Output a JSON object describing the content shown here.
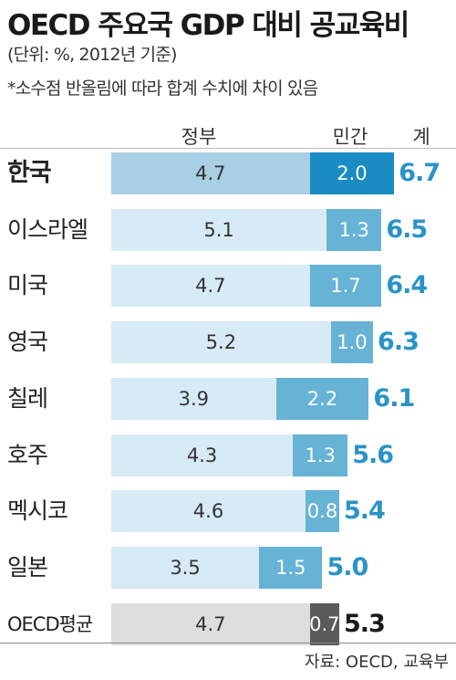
{
  "header": {
    "title": "OECD 주요국 GDP 대비 공교육비",
    "unit_note": "(단위: %, 2012년 기준)",
    "rounding_note": "*소수점 반올림에 따라 합계 수치에 차이 있음"
  },
  "columns": {
    "gov": "정부",
    "private": "민간",
    "total": "계"
  },
  "source": "자료: OECD, 교육부",
  "colors": {
    "gov_bar": "#d7ebf6",
    "gov_bar_korea": "#a9cfe4",
    "gov_bar_oecd": "#dddddd",
    "private_bar": "#66b3d6",
    "private_bar_korea": "#1a8cc4",
    "private_bar_oecd": "#5a5a5a",
    "total_text": "#2a93c7",
    "total_text_oecd": "#1a1a1a"
  },
  "chart_data": {
    "type": "bar",
    "stacked": true,
    "orientation": "horizontal",
    "categories": [
      "한국",
      "이스라엘",
      "미국",
      "영국",
      "칠레",
      "호주",
      "멕시코",
      "일본",
      "OECD평균"
    ],
    "series": [
      {
        "name": "정부",
        "values": [
          4.7,
          5.1,
          4.7,
          5.2,
          3.9,
          4.3,
          4.6,
          3.5,
          4.7
        ]
      },
      {
        "name": "민간",
        "values": [
          2.0,
          1.3,
          1.7,
          1.0,
          2.2,
          1.3,
          0.8,
          1.5,
          0.7
        ]
      }
    ],
    "totals": {
      "name": "계",
      "values": [
        6.7,
        6.5,
        6.4,
        6.3,
        6.1,
        5.6,
        5.4,
        5.0,
        5.3
      ]
    },
    "gov_labels": [
      "4.7",
      "5.1",
      "4.7",
      "5.2",
      "3.9",
      "4.3",
      "4.6",
      "3.5",
      "4.7"
    ],
    "private_labels": [
      "2.0",
      "1.3",
      "1.7",
      "1.0",
      "2.2",
      "1.3",
      "0.8",
      "1.5",
      "0.7"
    ],
    "total_labels": [
      "6.7",
      "6.5",
      "6.4",
      "6.3",
      "6.1",
      "5.6",
      "5.4",
      "5.0",
      "5.3"
    ],
    "highlight": "한국",
    "reference": "OECD평균",
    "xlim": [
      0,
      6.7
    ],
    "grid": false,
    "legend": "column headers above bars"
  }
}
